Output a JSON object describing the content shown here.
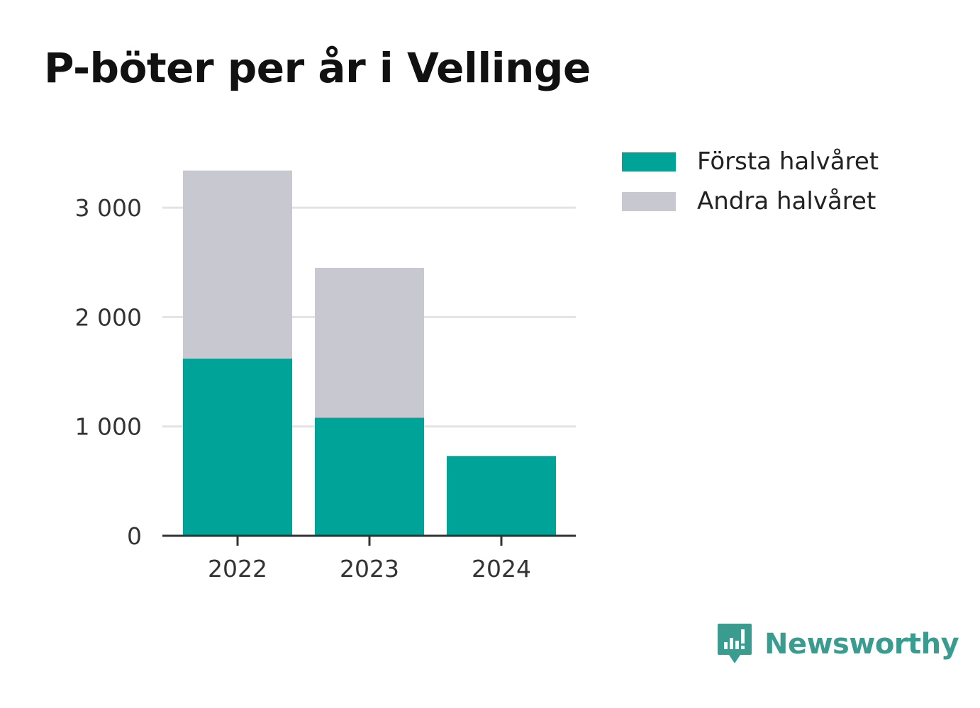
{
  "title": "P-böter per år i Vellinge",
  "brand": {
    "name": "Newsworthy",
    "color": "#3a9b8f",
    "icon": "newsworthy-logo-icon"
  },
  "colors": {
    "first_half": "#00a398",
    "second_half": "#c8c8d0",
    "grid": "#e3e3e3",
    "axis": "#333333"
  },
  "chart_data": {
    "type": "bar",
    "stacked": true,
    "categories": [
      "2022",
      "2023",
      "2024"
    ],
    "series": [
      {
        "name": "Första halvåret",
        "values": [
          1620,
          1080,
          730
        ]
      },
      {
        "name": "Andra halvåret",
        "values": [
          1720,
          1370,
          0
        ]
      }
    ],
    "y_ticks": [
      0,
      1000,
      2000,
      3000
    ],
    "y_tick_labels": [
      "0",
      "1 000",
      "2 000",
      "3 000"
    ],
    "ylim": [
      0,
      3400
    ],
    "grid": true,
    "legend_position": "top-right",
    "xlabel": "",
    "ylabel": ""
  }
}
